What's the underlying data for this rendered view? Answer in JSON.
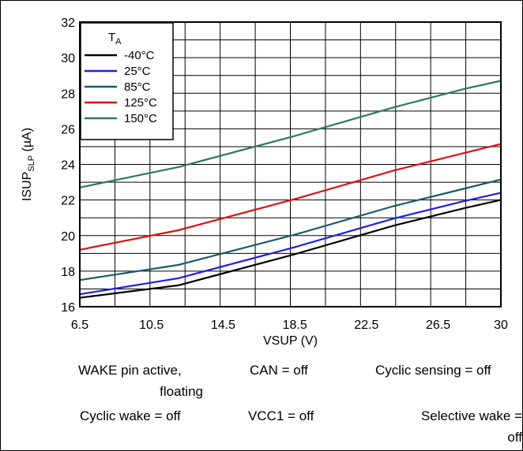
{
  "chart_data": {
    "type": "line",
    "xlabel": "VSUP (V)",
    "ylabel_main": "ISUP",
    "ylabel_sub": "SLP",
    "ylabel_unit": " (µA)",
    "xlim": [
      6.5,
      30
    ],
    "ylim": [
      16,
      32
    ],
    "x_ticks": [
      "6.5",
      "10.5",
      "14.5",
      "18.5",
      "22.5",
      "26.5",
      "30"
    ],
    "y_ticks": [
      "16",
      "18",
      "20",
      "22",
      "24",
      "26",
      "28",
      "30",
      "32"
    ],
    "grid": true,
    "legend": {
      "title_main": "T",
      "title_sub": "A",
      "placement": "top-left"
    },
    "series": [
      {
        "name": "-40°C",
        "color": "#000000",
        "x": [
          6.5,
          12,
          18.5,
          24,
          28,
          30
        ],
        "y": [
          16.5,
          17.2,
          18.95,
          20.55,
          21.55,
          22.0
        ]
      },
      {
        "name": "25°C",
        "color": "#1f1fe0",
        "x": [
          6.5,
          12,
          18.5,
          24,
          28,
          30
        ],
        "y": [
          16.7,
          17.6,
          19.35,
          20.95,
          21.95,
          22.4
        ]
      },
      {
        "name": "85°C",
        "color": "#1b5a6a",
        "x": [
          6.5,
          12,
          18.5,
          24,
          28,
          30
        ],
        "y": [
          17.5,
          18.35,
          20.05,
          21.65,
          22.65,
          23.15
        ]
      },
      {
        "name": "125°C",
        "color": "#e01010",
        "x": [
          6.5,
          12,
          18.5,
          24,
          28,
          30
        ],
        "y": [
          19.2,
          20.3,
          22.05,
          23.65,
          24.65,
          25.15
        ]
      },
      {
        "name": "150°C",
        "color": "#2e7a58",
        "x": [
          6.5,
          12,
          18.5,
          24,
          28,
          30
        ],
        "y": [
          22.7,
          23.85,
          25.6,
          27.2,
          28.25,
          28.7
        ]
      }
    ]
  },
  "conditions": {
    "wake_pin_line1": "WAKE pin active,",
    "wake_pin_line2": "floating",
    "can": "CAN = off",
    "cyclic_sensing": "Cyclic sensing = off",
    "cyclic_wake": "Cyclic wake = off",
    "vcc1": "VCC1 = off",
    "selective_wake_line1": "Selective wake =",
    "selective_wake_line2": "off"
  }
}
